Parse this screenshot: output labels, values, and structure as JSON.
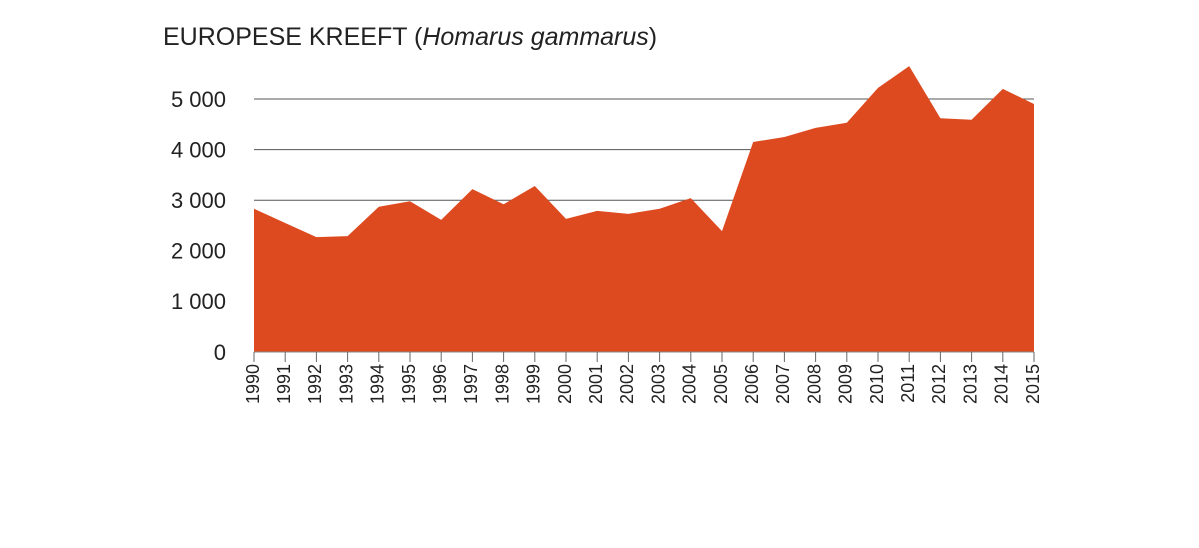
{
  "chart_data": {
    "type": "area",
    "title": [
      "EUROPESE KREEFT (",
      "Homarus gammarus",
      ")"
    ],
    "x": [
      1990,
      1991,
      1992,
      1993,
      1994,
      1995,
      1996,
      1997,
      1998,
      1999,
      2000,
      2001,
      2002,
      2003,
      2004,
      2005,
      2006,
      2007,
      2008,
      2009,
      2010,
      2011,
      2012,
      2013,
      2014,
      2015
    ],
    "values": [
      2830,
      2550,
      2270,
      2290,
      2870,
      2980,
      2610,
      3220,
      2920,
      3280,
      2630,
      2790,
      2730,
      2830,
      3040,
      2390,
      4150,
      4250,
      4430,
      4530,
      5220,
      5650,
      4620,
      4590,
      5200,
      4900
    ],
    "color": "#de4a20",
    "xlim": [
      1990,
      2015
    ],
    "ylim": [
      0,
      6000
    ],
    "yticks": [
      0,
      {
        "value": 1000,
        "label": "1 000"
      },
      {
        "value": 2000,
        "label": "2 000"
      },
      {
        "value": 3000,
        "label": "3 000"
      },
      {
        "value": 4000,
        "label": "4 000"
      },
      {
        "value": 5000,
        "label": "5 000"
      }
    ],
    "grid": true
  }
}
